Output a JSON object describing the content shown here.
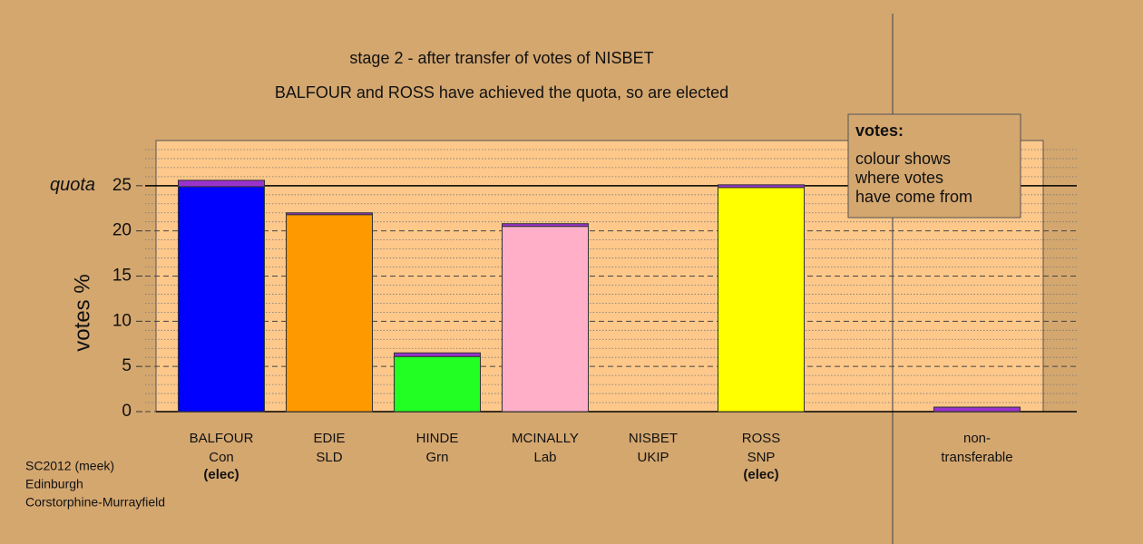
{
  "chart_data": {
    "type": "stacked_bar",
    "title": "stage 2 - after transfer of votes of NISBET",
    "subtitle": "BALFOUR and ROSS have achieved the quota, so are elected",
    "y_label": "votes %",
    "categories": [
      "BALFOUR",
      "EDIE",
      "HINDE",
      "MCINALLY",
      "NISBET",
      "ROSS",
      null,
      "non-"
    ],
    "parties": [
      "Con",
      "SLD",
      "Grn",
      "Lab",
      "UKIP",
      "SNP",
      null,
      "transferable"
    ],
    "status": [
      "(elec)",
      null,
      null,
      null,
      null,
      "(elec)",
      null,
      null
    ],
    "series": [
      {
        "colors": [
          "#0000ff",
          "#ff9900",
          "#22ff22",
          "#ffb0c8",
          "#9933cc",
          "#ffff00",
          null,
          "#9933cc"
        ],
        "values": [
          24.9,
          21.8,
          6.1,
          20.5,
          0,
          24.8,
          null,
          0
        ]
      },
      {
        "color": "#9933cc",
        "values": [
          0.7,
          0.2,
          0.4,
          0.3,
          0,
          0.3,
          null,
          0.5
        ]
      }
    ],
    "ylim": [
      0,
      30
    ],
    "yticks": [
      0,
      5,
      10,
      15,
      20,
      25
    ],
    "minor_yticks": [
      1,
      2,
      3,
      4,
      6,
      7,
      8,
      9,
      11,
      12,
      13,
      14,
      16,
      17,
      18,
      19,
      21,
      22,
      23,
      24,
      26,
      27,
      28,
      29
    ],
    "quota": {
      "value": 25,
      "label": "quota"
    },
    "legend_box": {
      "title": "votes:",
      "lines": [
        "colour shows",
        "where votes",
        "have come from"
      ]
    },
    "footnote": [
      "SC2012 (meek)",
      "Edinburgh",
      "Corstorphine-Murrayfield"
    ],
    "grid": true
  }
}
